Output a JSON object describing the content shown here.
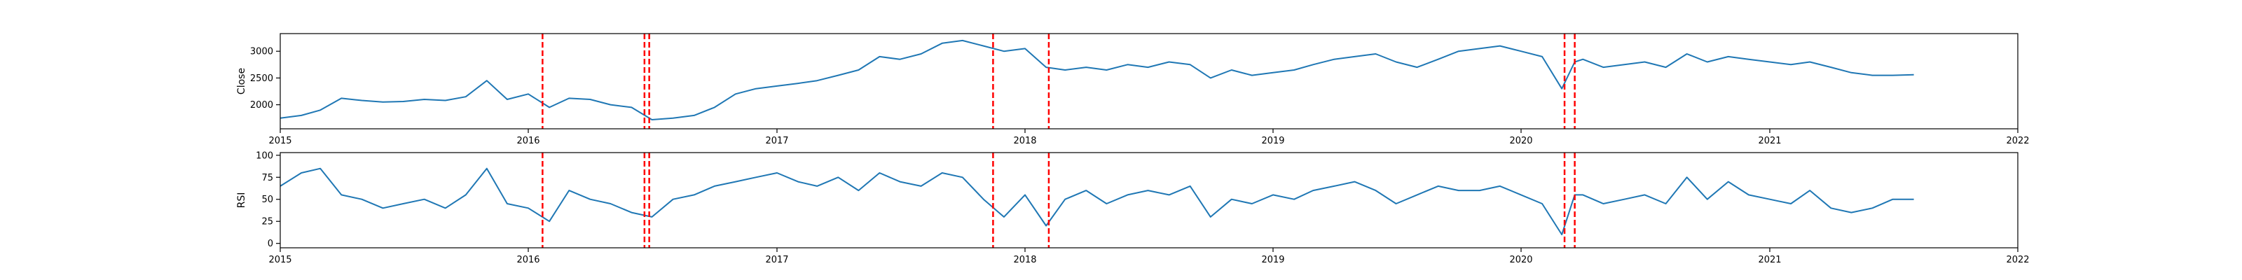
{
  "chart_data": [
    {
      "type": "line",
      "ylabel": "Close",
      "xlim": [
        "2015-01-01",
        "2022-01-01"
      ],
      "ylim": [
        1550,
        3330
      ],
      "x_ticks": [
        "2015",
        "2016",
        "2017",
        "2018",
        "2019",
        "2020",
        "2021",
        "2022"
      ],
      "y_ticks": [
        2000,
        2500,
        3000
      ],
      "grid": false,
      "legend": "none",
      "series_color": "#1f77b4",
      "vline_color": "#ff0000",
      "series": [
        {
          "x": [
            "2015-01-01",
            "2015-02-01",
            "2015-03-01",
            "2015-04-01",
            "2015-05-01",
            "2015-06-01",
            "2015-07-01",
            "2015-08-01",
            "2015-09-01",
            "2015-10-01",
            "2015-11-01",
            "2015-12-01",
            "2016-01-01",
            "2016-02-01",
            "2016-03-01",
            "2016-04-01",
            "2016-05-01",
            "2016-06-01",
            "2016-07-01",
            "2016-08-01",
            "2016-09-01",
            "2016-10-01",
            "2016-11-01",
            "2016-12-01",
            "2017-01-01",
            "2017-02-01",
            "2017-03-01",
            "2017-04-01",
            "2017-05-01",
            "2017-06-01",
            "2017-07-01",
            "2017-08-01",
            "2017-09-01",
            "2017-10-01",
            "2017-11-01",
            "2017-12-01",
            "2018-01-01",
            "2018-02-01",
            "2018-03-01",
            "2018-04-01",
            "2018-05-01",
            "2018-06-01",
            "2018-07-01",
            "2018-08-01",
            "2018-09-01",
            "2018-10-01",
            "2018-11-01",
            "2018-12-01",
            "2019-01-01",
            "2019-02-01",
            "2019-03-01",
            "2019-04-01",
            "2019-05-01",
            "2019-06-01",
            "2019-07-01",
            "2019-08-01",
            "2019-09-01",
            "2019-10-01",
            "2019-11-01",
            "2019-12-01",
            "2020-01-01",
            "2020-02-01",
            "2020-03-01",
            "2020-03-20",
            "2020-04-01",
            "2020-05-01",
            "2020-06-01",
            "2020-07-01",
            "2020-08-01",
            "2020-09-01",
            "2020-10-01",
            "2020-11-01",
            "2020-12-01",
            "2021-01-01",
            "2021-02-01",
            "2021-03-01",
            "2021-04-01",
            "2021-05-01",
            "2021-06-01",
            "2021-07-01",
            "2021-08-01"
          ],
          "y": [
            1750,
            1800,
            1900,
            2120,
            2080,
            2050,
            2060,
            2100,
            2080,
            2150,
            2450,
            2100,
            2200,
            1950,
            2120,
            2100,
            2000,
            1950,
            1720,
            1750,
            1800,
            1950,
            2200,
            2300,
            2350,
            2400,
            2450,
            2550,
            2650,
            2900,
            2850,
            2950,
            3150,
            3200,
            3100,
            3000,
            3050,
            2700,
            2650,
            2700,
            2650,
            2750,
            2700,
            2800,
            2750,
            2500,
            2650,
            2550,
            2600,
            2650,
            2750,
            2850,
            2900,
            2950,
            2800,
            2700,
            2850,
            3000,
            3050,
            3100,
            3000,
            2900,
            2300,
            2800,
            2850,
            2700,
            2750,
            2800,
            2700,
            2950,
            2800,
            2900,
            2850,
            2800,
            2750,
            2800,
            2700,
            2600,
            2550,
            2550,
            2560
          ]
        }
      ],
      "vlines": [
        "2016-01-22",
        "2016-06-20",
        "2016-06-27",
        "2017-11-15",
        "2018-02-05",
        "2020-03-05",
        "2020-03-20"
      ]
    },
    {
      "type": "line",
      "ylabel": "RSI",
      "xlim": [
        "2015-01-01",
        "2022-01-01"
      ],
      "ylim": [
        -5,
        103
      ],
      "x_ticks": [
        "2015",
        "2016",
        "2017",
        "2018",
        "2019",
        "2020",
        "2021",
        "2022"
      ],
      "y_ticks": [
        0,
        25,
        50,
        75,
        100
      ],
      "grid": false,
      "legend": "none",
      "series_color": "#1f77b4",
      "vline_color": "#ff0000",
      "series": [
        {
          "x": [
            "2015-01-01",
            "2015-02-01",
            "2015-03-01",
            "2015-04-01",
            "2015-05-01",
            "2015-06-01",
            "2015-07-01",
            "2015-08-01",
            "2015-09-01",
            "2015-10-01",
            "2015-11-01",
            "2015-12-01",
            "2016-01-01",
            "2016-02-01",
            "2016-03-01",
            "2016-04-01",
            "2016-05-01",
            "2016-06-01",
            "2016-07-01",
            "2016-08-01",
            "2016-09-01",
            "2016-10-01",
            "2016-11-01",
            "2016-12-01",
            "2017-01-01",
            "2017-02-01",
            "2017-03-01",
            "2017-04-01",
            "2017-05-01",
            "2017-06-01",
            "2017-07-01",
            "2017-08-01",
            "2017-09-01",
            "2017-10-01",
            "2017-11-01",
            "2017-12-01",
            "2018-01-01",
            "2018-02-01",
            "2018-03-01",
            "2018-04-01",
            "2018-05-01",
            "2018-06-01",
            "2018-07-01",
            "2018-08-01",
            "2018-09-01",
            "2018-10-01",
            "2018-11-01",
            "2018-12-01",
            "2019-01-01",
            "2019-02-01",
            "2019-03-01",
            "2019-04-01",
            "2019-05-01",
            "2019-06-01",
            "2019-07-01",
            "2019-08-01",
            "2019-09-01",
            "2019-10-01",
            "2019-11-01",
            "2019-12-01",
            "2020-01-01",
            "2020-02-01",
            "2020-03-01",
            "2020-03-20",
            "2020-04-01",
            "2020-05-01",
            "2020-06-01",
            "2020-07-01",
            "2020-08-01",
            "2020-09-01",
            "2020-10-01",
            "2020-11-01",
            "2020-12-01",
            "2021-01-01",
            "2021-02-01",
            "2021-03-01",
            "2021-04-01",
            "2021-05-01",
            "2021-06-01",
            "2021-07-01",
            "2021-08-01"
          ],
          "y": [
            65,
            80,
            85,
            55,
            50,
            40,
            45,
            50,
            40,
            55,
            85,
            45,
            40,
            25,
            60,
            50,
            45,
            35,
            30,
            50,
            55,
            65,
            70,
            75,
            80,
            70,
            65,
            75,
            60,
            80,
            70,
            65,
            80,
            75,
            50,
            30,
            55,
            20,
            50,
            60,
            45,
            55,
            60,
            55,
            65,
            30,
            50,
            45,
            55,
            50,
            60,
            65,
            70,
            60,
            45,
            55,
            65,
            60,
            60,
            65,
            55,
            45,
            10,
            55,
            55,
            45,
            50,
            55,
            45,
            75,
            50,
            70,
            55,
            50,
            45,
            60,
            40,
            35,
            40,
            50,
            50
          ]
        }
      ],
      "vlines": [
        "2016-01-22",
        "2016-06-20",
        "2016-06-27",
        "2017-11-15",
        "2018-02-05",
        "2020-03-05",
        "2020-03-20"
      ]
    }
  ]
}
